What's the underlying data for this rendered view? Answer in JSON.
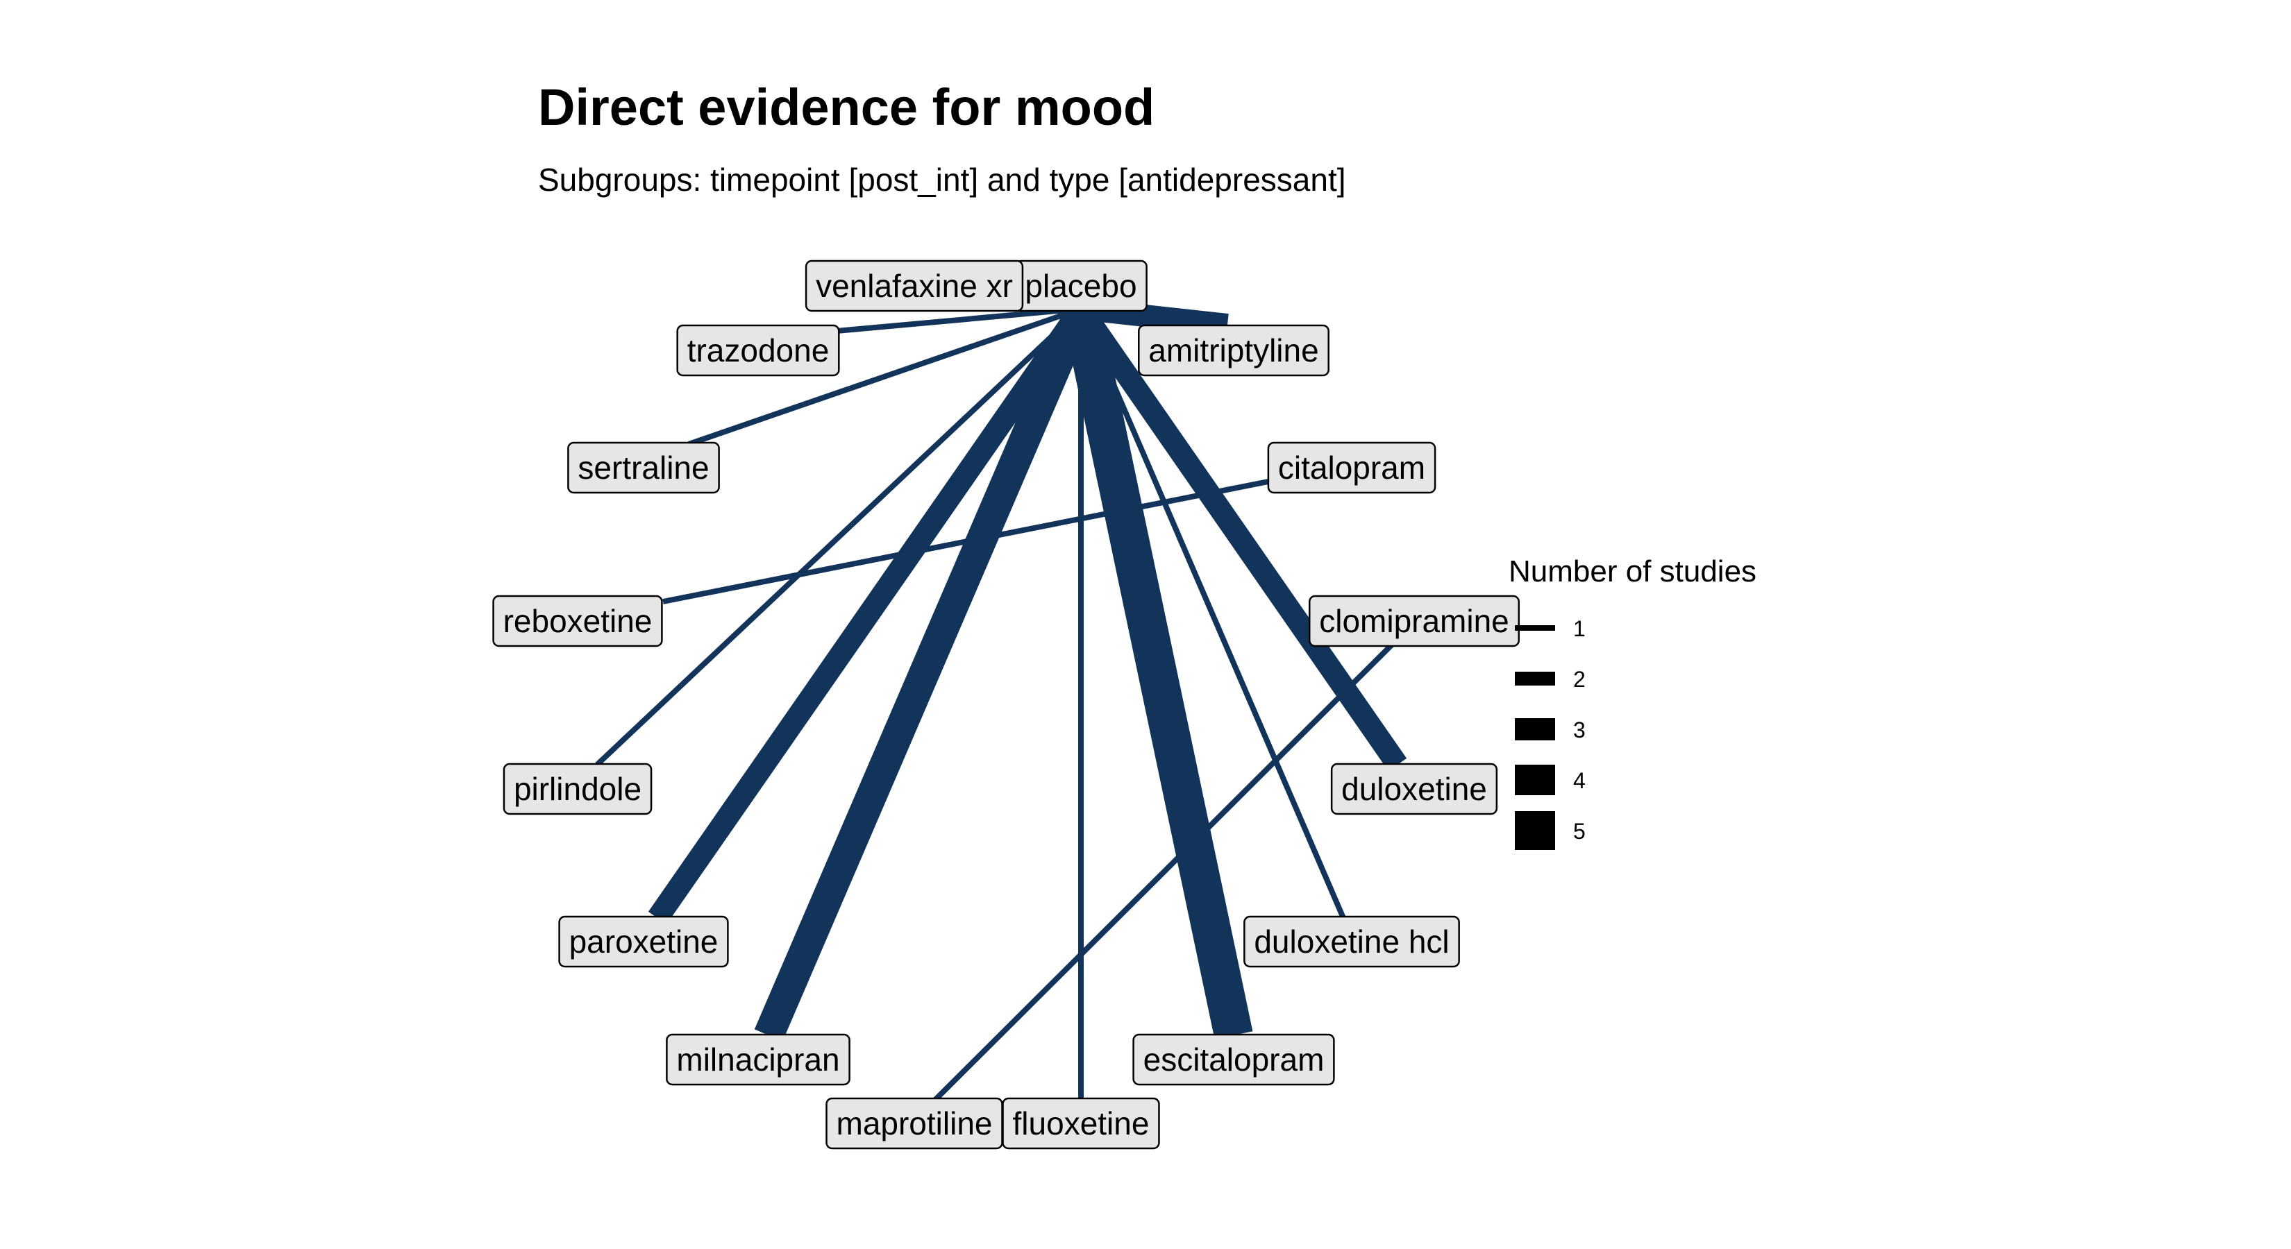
{
  "title": "Direct evidence for mood",
  "subtitle": "Subgroups: timepoint [post_int] and type [antidepressant]",
  "colors": {
    "edge": "#12345a",
    "node_fill": "#e6e6e6",
    "node_border": "#000000",
    "legend_key": "#000000"
  },
  "network": {
    "hub": "placebo",
    "nodes": [
      "placebo",
      "venlafaxine xr",
      "trazodone",
      "amitriptyline",
      "sertraline",
      "citalopram",
      "reboxetine",
      "clomipramine",
      "pirlindole",
      "duloxetine",
      "paroxetine",
      "duloxetine hcl",
      "milnacipran",
      "escitalopram",
      "maprotiline",
      "fluoxetine"
    ],
    "edges": [
      {
        "from": "placebo",
        "to": "venlafaxine xr",
        "studies": 1
      },
      {
        "from": "placebo",
        "to": "trazodone",
        "studies": 1
      },
      {
        "from": "placebo",
        "to": "amitriptyline",
        "studies": 3
      },
      {
        "from": "placebo",
        "to": "sertraline",
        "studies": 1
      },
      {
        "from": "placebo",
        "to": "pirlindole",
        "studies": 1
      },
      {
        "from": "placebo",
        "to": "paroxetine",
        "studies": 3
      },
      {
        "from": "placebo",
        "to": "milnacipran",
        "studies": 4
      },
      {
        "from": "placebo",
        "to": "fluoxetine",
        "studies": 1
      },
      {
        "from": "placebo",
        "to": "escitalopram",
        "studies": 5
      },
      {
        "from": "placebo",
        "to": "duloxetine hcl",
        "studies": 1
      },
      {
        "from": "placebo",
        "to": "duloxetine",
        "studies": 3
      },
      {
        "from": "citalopram",
        "to": "reboxetine",
        "studies": 1
      },
      {
        "from": "clomipramine",
        "to": "maprotiline",
        "studies": 1
      }
    ]
  },
  "legend": {
    "title": "Number of studies",
    "items": [
      "1",
      "2",
      "3",
      "4",
      "5"
    ]
  }
}
